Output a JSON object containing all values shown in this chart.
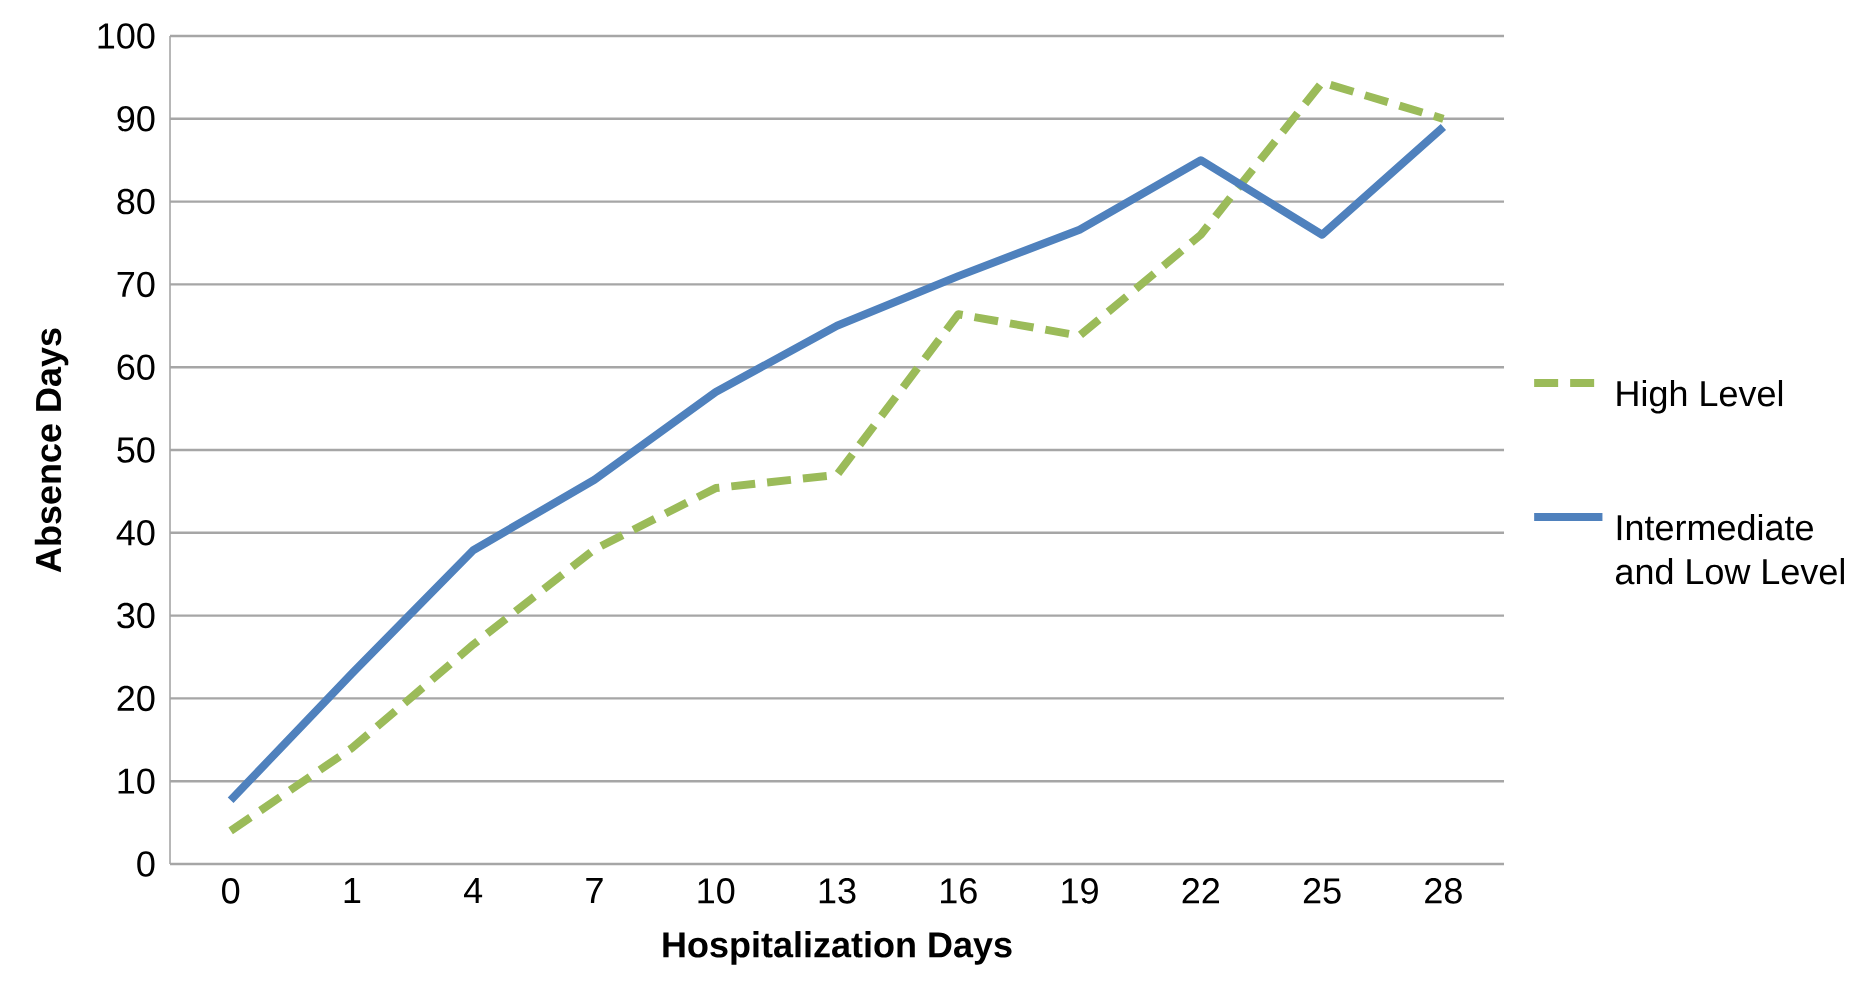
{
  "chart_data": {
    "type": "line",
    "xlabel": "Hospitalization  Days",
    "ylabel": "Absence Days",
    "categories": [
      "0",
      "1",
      "4",
      "7",
      "10",
      "13",
      "16",
      "19",
      "22",
      "25",
      "28"
    ],
    "series": [
      {
        "name": "High Level",
        "color": "#9bbb59",
        "line_style": "dashed",
        "values": [
          4,
          14,
          26.5,
          38,
          45.4,
          47,
          66.4,
          63.8,
          76,
          94.4,
          90
        ]
      },
      {
        "name": "Intermediate and Low Level",
        "color": "#4f81bd",
        "line_style": "solid",
        "values": [
          7.7,
          23,
          37.9,
          46.4,
          57,
          65,
          71,
          76.6,
          85,
          76,
          89
        ]
      }
    ],
    "ylim": [
      0,
      100
    ],
    "yticks": [
      0,
      10,
      20,
      30,
      40,
      50,
      60,
      70,
      80,
      90,
      100
    ],
    "grid": "y",
    "legend": "right",
    "marker": "none"
  }
}
